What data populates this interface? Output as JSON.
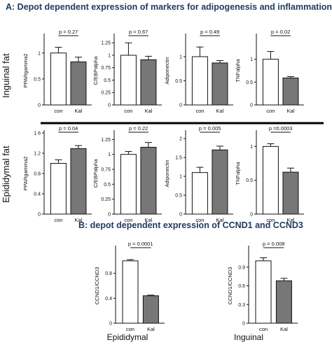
{
  "section_a_title": "A: Depot dependent expression of markers for adipogenesis and inflammation",
  "section_b_title": "B: depot dependent expression of CCND1 and CCND3",
  "row_labels": [
    "Inguinal fat",
    "Epididymal fat"
  ],
  "footer_labels": [
    "Epididymal",
    "Inguinal"
  ],
  "colors": {
    "con": "#ffffff",
    "kal": "#777777",
    "axis": "#111111",
    "title": "#1f3a5f"
  },
  "chart_data": [
    {
      "type": "bar",
      "ylabel": "PPARgamma2",
      "categories": [
        "con",
        "Kal"
      ],
      "values": [
        1.0,
        0.83
      ],
      "errors": [
        0.11,
        0.09
      ],
      "yticks": [
        0,
        0.5,
        1
      ],
      "ylim": [
        0,
        1.32
      ],
      "pvalue": "p = 0.27"
    },
    {
      "type": "bar",
      "ylabel": "C/EBPalpha",
      "categories": [
        "con",
        "Kal"
      ],
      "values": [
        1.0,
        0.91
      ],
      "errors": [
        0.25,
        0.07
      ],
      "yticks": [
        0,
        0.25,
        0.5,
        0.75,
        1.0,
        1.25
      ],
      "ylim": [
        0,
        1.38
      ],
      "pvalue": "p = 0.67"
    },
    {
      "type": "bar",
      "ylabel": "Adiponectin",
      "categories": [
        "con",
        "Kal"
      ],
      "values": [
        1.0,
        0.87
      ],
      "errors": [
        0.2,
        0.05
      ],
      "yticks": [
        0,
        0.5,
        1
      ],
      "ylim": [
        0,
        1.42
      ],
      "pvalue": "p = 0.49"
    },
    {
      "type": "bar",
      "ylabel": "TNFalpha",
      "categories": [
        "con",
        "Kal"
      ],
      "values": [
        1.0,
        0.59
      ],
      "errors": [
        0.17,
        0.03
      ],
      "yticks": [
        0,
        0.5,
        1
      ],
      "ylim": [
        0,
        1.5
      ],
      "pvalue": "p = 0.02"
    },
    {
      "type": "bar",
      "ylabel": "PPARgamma2",
      "categories": [
        "con",
        "Kal"
      ],
      "values": [
        1.0,
        1.29
      ],
      "errors": [
        0.07,
        0.06
      ],
      "yticks": [
        0,
        0.4,
        0.8,
        1.2,
        1.6
      ],
      "ylim": [
        0,
        1.6
      ],
      "pvalue": "p = 0.04"
    },
    {
      "type": "bar",
      "ylabel": "C/EBPalpha",
      "categories": [
        "con",
        "Kal"
      ],
      "values": [
        1.0,
        1.12
      ],
      "errors": [
        0.05,
        0.08
      ],
      "yticks": [
        0,
        0.25,
        0.5,
        0.75,
        1.0,
        1.25
      ],
      "ylim": [
        0,
        1.36
      ],
      "pvalue": "p = 0.22"
    },
    {
      "type": "bar",
      "ylabel": "Adiponectin",
      "categories": [
        "con",
        "Kal"
      ],
      "values": [
        1.1,
        1.7
      ],
      "errors": [
        0.14,
        0.1
      ],
      "yticks": [
        0,
        0.5,
        1,
        1.5,
        2
      ],
      "ylim": [
        0,
        2.15
      ],
      "pvalue": "p = 0.005"
    },
    {
      "type": "bar",
      "ylabel": "TNFalpha",
      "categories": [
        "con",
        "Kal"
      ],
      "values": [
        1.0,
        0.62
      ],
      "errors": [
        0.04,
        0.06
      ],
      "yticks": [
        0,
        0.5,
        1
      ],
      "ylim": [
        0,
        1.2
      ],
      "pvalue": "p =0.0003"
    },
    {
      "type": "bar",
      "ylabel": "CCND1/CCND3",
      "categories": [
        "con",
        "Kal"
      ],
      "values": [
        1.0,
        0.44
      ],
      "errors": [
        0.02,
        0.01
      ],
      "yticks": [
        0,
        0.4,
        0.8
      ],
      "ylim": [
        0,
        1.2
      ],
      "pvalue": "p = 0.0001"
    },
    {
      "type": "bar",
      "ylabel": "CCND1/CCND3",
      "categories": [
        "con",
        "Kal"
      ],
      "values": [
        1.0,
        0.68
      ],
      "errors": [
        0.05,
        0.04
      ],
      "yticks": [
        0,
        0.3,
        0.6,
        0.9
      ],
      "ylim": [
        0,
        1.2
      ],
      "pvalue": "p = 0.008"
    }
  ]
}
